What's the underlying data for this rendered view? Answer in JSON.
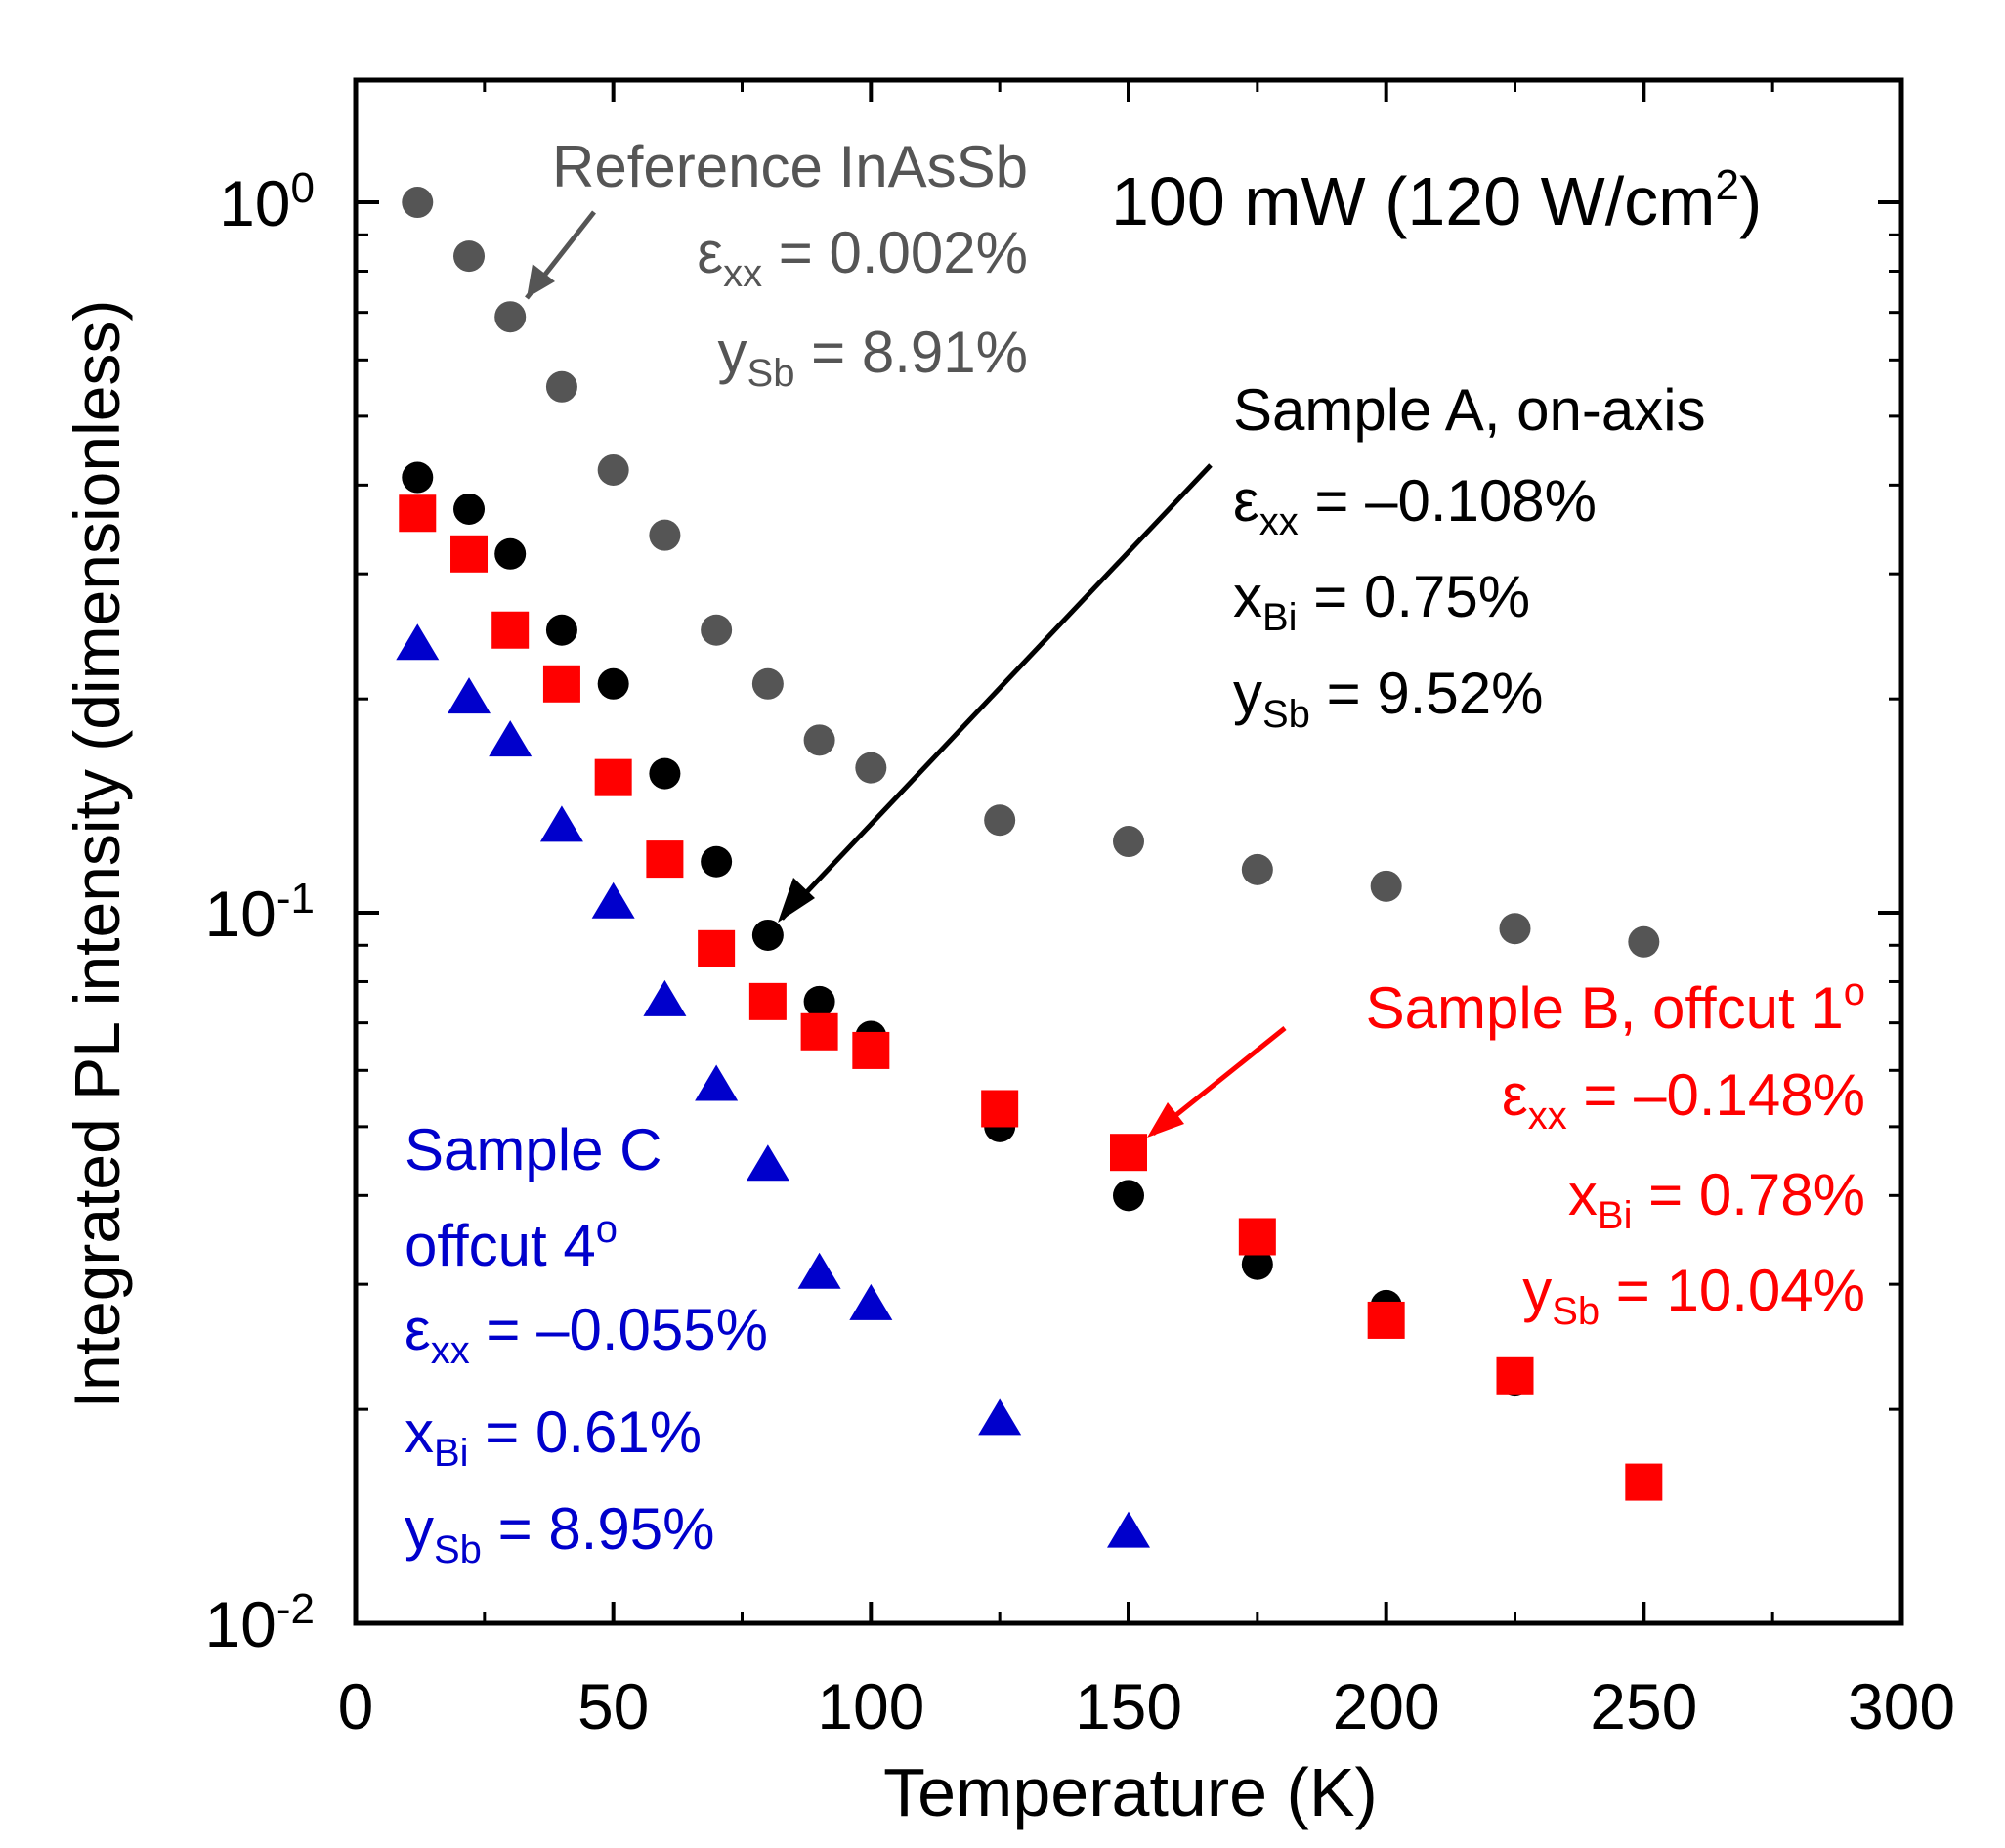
{
  "chart_data": {
    "type": "scatter",
    "title": "",
    "xlabel": "Temperature (K)",
    "ylabel": "Integrated PL intensity (dimensionless)",
    "xlim": [
      0,
      300
    ],
    "ylim": [
      0.01,
      1.486
    ],
    "yscale": "log",
    "grid": false,
    "xticks": [
      "0",
      "50",
      "100",
      "150",
      "200",
      "250",
      "300"
    ],
    "xtick_values": [
      0,
      50,
      100,
      150,
      200,
      250,
      300
    ],
    "yticks": [
      {
        "base": "10",
        "exp": "0",
        "value": 1
      },
      {
        "base": "10",
        "exp": "-1",
        "value": 0.1
      },
      {
        "base": "10",
        "exp": "-2",
        "value": 0.01
      }
    ],
    "series": [
      {
        "name": "Reference InAsSb",
        "color": "#555555",
        "marker": "circle",
        "x": [
          12,
          22,
          30,
          40,
          50,
          60,
          70,
          80,
          90,
          100,
          125,
          150,
          175,
          200,
          225,
          250
        ],
        "y": [
          1.0,
          0.84,
          0.69,
          0.55,
          0.42,
          0.34,
          0.25,
          0.21,
          0.175,
          0.16,
          0.135,
          0.126,
          0.115,
          0.109,
          0.095,
          0.091
        ]
      },
      {
        "name": "Sample A, on-axis",
        "color": "#000000",
        "marker": "circle",
        "x": [
          12,
          22,
          30,
          40,
          50,
          60,
          70,
          80,
          90,
          100,
          125,
          150,
          175,
          200,
          225
        ],
        "y": [
          0.41,
          0.37,
          0.32,
          0.25,
          0.21,
          0.157,
          0.118,
          0.093,
          0.075,
          0.067,
          0.05,
          0.04,
          0.032,
          0.028,
          0.022
        ]
      },
      {
        "name": "Sample B, offcut 1o",
        "color": "#ff0000",
        "marker": "square",
        "x": [
          12,
          22,
          30,
          40,
          50,
          60,
          70,
          80,
          90,
          100,
          125,
          150,
          175,
          200,
          225,
          250
        ],
        "y": [
          0.365,
          0.32,
          0.25,
          0.21,
          0.155,
          0.119,
          0.089,
          0.075,
          0.068,
          0.064,
          0.053,
          0.046,
          0.035,
          0.0267,
          0.0223,
          0.0158
        ]
      },
      {
        "name": "Sample C offcut 4o",
        "color": "#0000cc",
        "marker": "triangle",
        "x": [
          12,
          22,
          30,
          40,
          50,
          60,
          70,
          80,
          90,
          100,
          125,
          150
        ],
        "y": [
          0.238,
          0.2,
          0.174,
          0.132,
          0.103,
          0.075,
          0.057,
          0.044,
          0.031,
          0.028,
          0.0193,
          0.0134
        ]
      }
    ],
    "annotations": {
      "power": {
        "main": "100 mW (120 W/cm",
        "sup": "2",
        "end": ")"
      },
      "reference": {
        "title": "Reference InAsSb",
        "l1": [
          "ε",
          "xx",
          " = 0.002%"
        ],
        "l2": [
          "y",
          "Sb",
          " = 8.91%"
        ]
      },
      "sampleA": {
        "title": "Sample A, on-axis",
        "l1": [
          "ε",
          "xx",
          " = –0.108%"
        ],
        "l2": [
          "x",
          "Bi",
          " = 0.75%"
        ],
        "l3": [
          "y",
          "Sb",
          " = 9.52%"
        ]
      },
      "sampleB": {
        "title": "Sample B, offcut 1",
        "title_sup": "o",
        "l1": [
          "ε",
          "xx",
          " = –0.148%"
        ],
        "l2": [
          "x",
          "Bi",
          " = 0.78%"
        ],
        "l3": [
          "y",
          "Sb",
          " = 10.04%"
        ]
      },
      "sampleC": {
        "title": "Sample C",
        "l0": "offcut 4",
        "l0_sup": "o",
        "l1": [
          "ε",
          "xx",
          " = –0.055%"
        ],
        "l2": [
          "x",
          "Bi",
          " = 0.61%"
        ],
        "l3": [
          "y",
          "Sb",
          " = 8.95%"
        ]
      }
    }
  }
}
